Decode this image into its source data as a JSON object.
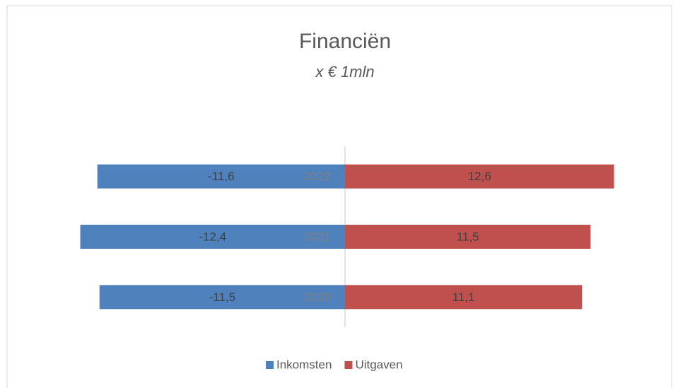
{
  "chart_data": {
    "type": "bar",
    "orientation": "horizontal",
    "title": "Financiën",
    "subtitle": "x € 1mln",
    "categories": [
      "2022",
      "2021",
      "2020"
    ],
    "series": [
      {
        "name": "Inkomsten",
        "color": "#4f81bd",
        "values": [
          -11.6,
          -12.4,
          -11.5
        ],
        "value_labels": [
          "-11,6",
          "-12,4",
          "-11,5"
        ]
      },
      {
        "name": "Uitgaven",
        "color": "#c0504d",
        "values": [
          12.6,
          11.5,
          11.1
        ],
        "value_labels": [
          "12,6",
          "11,5",
          "11,1"
        ]
      }
    ],
    "xlim": [
      -15,
      15
    ],
    "legend": "bottom"
  }
}
